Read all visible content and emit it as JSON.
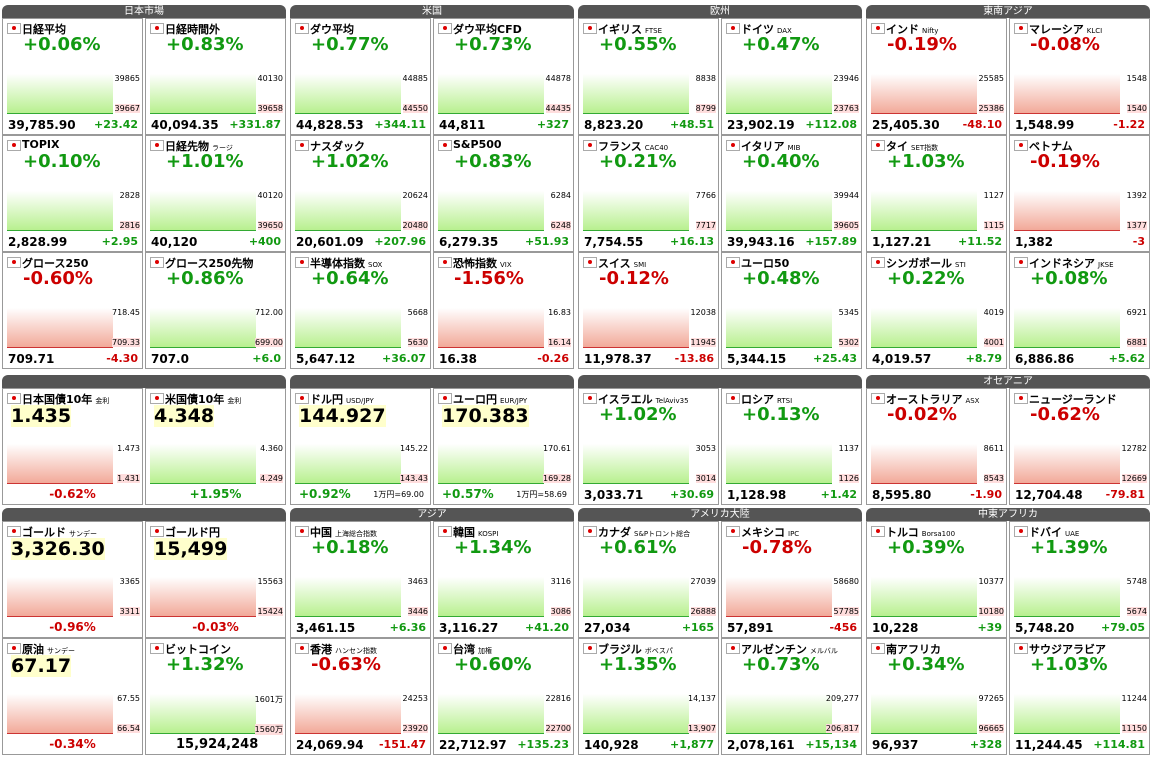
{
  "blocks": [
    {
      "regions": [
        {
          "name": "日本市場",
          "tiles": [
            {
              "n": "日経平均",
              "c": "+0.06%",
              "p": "39,785.90",
              "d": "+23.42",
              "hi": "39865",
              "lo": "39667"
            },
            {
              "n": "日経時間外",
              "c": "+0.83%",
              "p": "40,094.35",
              "d": "+331.87",
              "hi": "40130",
              "lo": "39658"
            },
            {
              "n": "TOPIX",
              "c": "+0.10%",
              "p": "2,828.99",
              "d": "+2.95",
              "hi": "2828",
              "lo": "2816"
            },
            {
              "n": "日経先物",
              "s": "ラージ",
              "c": "+1.01%",
              "p": "40,120",
              "d": "+400",
              "hi": "40120",
              "lo": "39650"
            },
            {
              "n": "グロース250",
              "c": "-0.60%",
              "p": "709.71",
              "d": "-4.30",
              "hi": "718.45",
              "lo": "709.33"
            },
            {
              "n": "グロース250先物",
              "c": "+0.86%",
              "p": "707.0",
              "d": "+6.0",
              "hi": "712.00",
              "lo": "699.00"
            }
          ]
        },
        {
          "name": "米国",
          "tiles": [
            {
              "n": "ダウ平均",
              "c": "+0.77%",
              "p": "44,828.53",
              "d": "+344.11",
              "hi": "44885",
              "lo": "44550"
            },
            {
              "n": "ダウ平均CFD",
              "c": "+0.73%",
              "p": "44,811",
              "d": "+327",
              "hi": "44878",
              "lo": "44435"
            },
            {
              "n": "ナスダック",
              "c": "+1.02%",
              "p": "20,601.09",
              "d": "+207.96",
              "hi": "20624",
              "lo": "20480"
            },
            {
              "n": "S&P500",
              "c": "+0.83%",
              "p": "6,279.35",
              "d": "+51.93",
              "hi": "6284",
              "lo": "6248"
            },
            {
              "n": "半導体指数",
              "s": "SOX",
              "c": "+0.64%",
              "p": "5,647.12",
              "d": "+36.07",
              "hi": "5668",
              "lo": "5630"
            },
            {
              "n": "恐怖指数",
              "s": "VIX",
              "c": "-1.56%",
              "p": "16.38",
              "d": "-0.26",
              "hi": "16.83",
              "lo": "16.14"
            }
          ]
        },
        {
          "name": "欧州",
          "tiles": [
            {
              "n": "イギリス",
              "s": "FTSE",
              "c": "+0.55%",
              "p": "8,823.20",
              "d": "+48.51",
              "hi": "8838",
              "lo": "8799"
            },
            {
              "n": "ドイツ",
              "s": "DAX",
              "c": "+0.47%",
              "p": "23,902.19",
              "d": "+112.08",
              "hi": "23946",
              "lo": "23763"
            },
            {
              "n": "フランス",
              "s": "CAC40",
              "c": "+0.21%",
              "p": "7,754.55",
              "d": "+16.13",
              "hi": "7766",
              "lo": "7717"
            },
            {
              "n": "イタリア",
              "s": "MIB",
              "c": "+0.40%",
              "p": "39,943.16",
              "d": "+157.89",
              "hi": "39944",
              "lo": "39605"
            },
            {
              "n": "スイス",
              "s": "SMI",
              "c": "-0.12%",
              "p": "11,978.37",
              "d": "-13.86",
              "hi": "12038",
              "lo": "11945"
            },
            {
              "n": "ユーロ50",
              "c": "+0.48%",
              "p": "5,344.15",
              "d": "+25.43",
              "hi": "5345",
              "lo": "5302"
            }
          ]
        },
        {
          "name": "東南アジア",
          "tiles": [
            {
              "n": "インド",
              "s": "Nifty",
              "c": "-0.19%",
              "p": "25,405.30",
              "d": "-48.10",
              "hi": "25585",
              "lo": "25386"
            },
            {
              "n": "マレーシア",
              "s": "KLCI",
              "c": "-0.08%",
              "p": "1,548.99",
              "d": "-1.22",
              "hi": "1548",
              "lo": "1540"
            },
            {
              "n": "タイ",
              "s": "SET指数",
              "c": "+1.03%",
              "p": "1,127.21",
              "d": "+11.52",
              "hi": "1127",
              "lo": "1115"
            },
            {
              "n": "ベトナム",
              "c": "-0.19%",
              "p": "1,382",
              "d": "-3",
              "hi": "1392",
              "lo": "1377"
            },
            {
              "n": "シンガポール",
              "s": "STI",
              "c": "+0.22%",
              "p": "4,019.57",
              "d": "+8.79",
              "hi": "4019",
              "lo": "4001"
            },
            {
              "n": "インドネシア",
              "s": "JKSE",
              "c": "+0.08%",
              "p": "6,886.86",
              "d": "+5.62",
              "hi": "6921",
              "lo": "6881"
            }
          ]
        }
      ]
    },
    {
      "regions": [
        {
          "tiles": [
            {
              "n": "日本国債10年",
              "s": "金利",
              "r": true,
              "p": "1.435",
              "c": "-0.62%",
              "hi": "1.473",
              "lo": "1.431"
            },
            {
              "n": "米国債10年",
              "s": "金利",
              "r": true,
              "p": "4.348",
              "c": "+1.95%",
              "hi": "4.360",
              "lo": "4.249"
            }
          ]
        },
        {
          "tiles": [
            {
              "n": "ドル円",
              "s": "USD/JPY",
              "r": true,
              "p": "144.927",
              "c": "+0.92%",
              "note": "1万円=69.00",
              "hi": "145.22",
              "lo": "143.43"
            },
            {
              "n": "ユーロ円",
              "s": "EUR/JPY",
              "r": true,
              "p": "170.383",
              "c": "+0.57%",
              "note": "1万円=58.69",
              "hi": "170.61",
              "lo": "169.28"
            }
          ]
        },
        {
          "tiles": [
            {
              "n": "イスラエル",
              "s": "TelAviv35",
              "c": "+1.02%",
              "p": "3,033.71",
              "d": "+30.69",
              "hi": "3053",
              "lo": "3014"
            },
            {
              "n": "ロシア",
              "s": "RTSI",
              "c": "+0.13%",
              "p": "1,128.98",
              "d": "+1.42",
              "hi": "1137",
              "lo": "1126"
            }
          ]
        },
        {
          "name": "オセアニア",
          "tiles": [
            {
              "n": "オーストラリア",
              "s": "ASX",
              "c": "-0.02%",
              "p": "8,595.80",
              "d": "-1.90",
              "hi": "8611",
              "lo": "8543"
            },
            {
              "n": "ニュージーランド",
              "c": "-0.62%",
              "p": "12,704.48",
              "d": "-79.81",
              "hi": "12782",
              "lo": "12669"
            }
          ]
        }
      ]
    },
    {
      "regions": [
        {
          "tiles": [
            {
              "n": "ゴールド",
              "s": "サンデー",
              "r": true,
              "p": "3,326.30",
              "c": "-0.96%",
              "hi": "3365",
              "lo": "3311"
            },
            {
              "n": "ゴールド円",
              "r": true,
              "p": "15,499",
              "c": "-0.03%",
              "hi": "15563",
              "lo": "15424"
            },
            {
              "n": "原油",
              "s": "サンデー",
              "r": true,
              "p": "67.17",
              "c": "-0.34%",
              "hi": "67.55",
              "lo": "66.54"
            },
            {
              "n": "ビットコイン",
              "c": "+1.32%",
              "p": "15,924,248",
              "hi": "1601万",
              "lo": "1560万"
            }
          ]
        },
        {
          "name": "アジア",
          "tiles": [
            {
              "n": "中国",
              "s": "上海総合指数",
              "c": "+0.18%",
              "p": "3,461.15",
              "d": "+6.36",
              "hi": "3463",
              "lo": "3446"
            },
            {
              "n": "韓国",
              "s": "KOSPI",
              "c": "+1.34%",
              "p": "3,116.27",
              "d": "+41.20",
              "hi": "3116",
              "lo": "3086"
            },
            {
              "n": "香港",
              "s": "ハンセン指数",
              "c": "-0.63%",
              "p": "24,069.94",
              "d": "-151.47",
              "hi": "24253",
              "lo": "23920"
            },
            {
              "n": "台湾",
              "s": "加権",
              "c": "+0.60%",
              "p": "22,712.97",
              "d": "+135.23",
              "hi": "22816",
              "lo": "22700"
            }
          ]
        },
        {
          "name": "アメリカ大陸",
          "tiles": [
            {
              "n": "カナダ",
              "s": "S&Pトロント総合",
              "c": "+0.61%",
              "p": "27,034",
              "d": "+165",
              "hi": "27039",
              "lo": "26888"
            },
            {
              "n": "メキシコ",
              "s": "IPC",
              "c": "-0.78%",
              "p": "57,891",
              "d": "-456",
              "hi": "58680",
              "lo": "57785"
            },
            {
              "n": "ブラジル",
              "s": "ボベスパ",
              "c": "+1.35%",
              "p": "140,928",
              "d": "+1,877",
              "hi": "14,137",
              "lo": "13,907"
            },
            {
              "n": "アルゼンチン",
              "s": "メルバル",
              "c": "+0.73%",
              "p": "2,078,161",
              "d": "+15,134",
              "hi": "209,277",
              "lo": "206,817"
            }
          ]
        },
        {
          "name": "中東アフリカ",
          "tiles": [
            {
              "n": "トルコ",
              "s": "Borsa100",
              "c": "+0.39%",
              "p": "10,228",
              "d": "+39",
              "hi": "10377",
              "lo": "10180"
            },
            {
              "n": "ドバイ",
              "s": "UAE",
              "c": "+1.39%",
              "p": "5,748.20",
              "d": "+79.05",
              "hi": "5748",
              "lo": "5674"
            },
            {
              "n": "南アフリカ",
              "c": "+0.34%",
              "p": "96,937",
              "d": "+328",
              "hi": "97265",
              "lo": "96665"
            },
            {
              "n": "サウジアラビア",
              "c": "+1.03%",
              "p": "11,244.45",
              "d": "+114.81",
              "hi": "11244",
              "lo": "11150"
            }
          ]
        }
      ]
    }
  ]
}
